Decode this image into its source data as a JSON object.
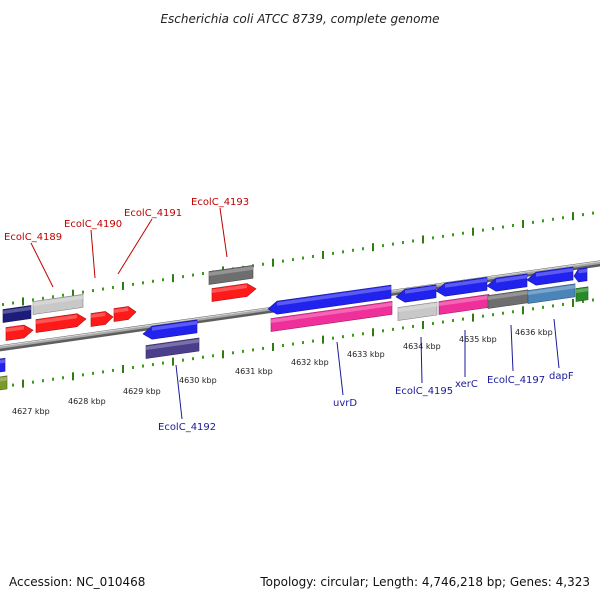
{
  "title": "Escherichia coli ATCC 8739, complete genome",
  "footer": {
    "accession": "Accession: NC_010468",
    "summary": "Topology: circular; Length: 4,746,218 bp; Genes: 4,323"
  },
  "colors": {
    "backbone": "#8a8a8a",
    "tick_major": "#2e7d10",
    "tick_minor": "#3f9a1c",
    "label_top": "#c00000",
    "label_bottom": "#1a1a9a"
  },
  "scale": {
    "ticks": [
      {
        "label": "4627 kbp"
      },
      {
        "label": "4628 kbp"
      },
      {
        "label": "4629 kbp"
      },
      {
        "label": "4630 kbp"
      },
      {
        "label": "4631 kbp"
      },
      {
        "label": "4632 kbp"
      },
      {
        "label": "4633 kbp"
      },
      {
        "label": "4634 kbp"
      },
      {
        "label": "4635 kbp"
      },
      {
        "label": "4636 kbp"
      }
    ]
  },
  "gene_labels": {
    "top": [
      {
        "text": "EcolC_4189"
      },
      {
        "text": "EcolC_4190"
      },
      {
        "text": "EcolC_4191"
      },
      {
        "text": "EcolC_4193"
      }
    ],
    "bottom": [
      {
        "text": "EcolC_4192"
      },
      {
        "text": "uvrD"
      },
      {
        "text": "EcolC_4195"
      },
      {
        "text": "xerC"
      },
      {
        "text": "EcolC_4197"
      },
      {
        "text": "dapF"
      }
    ]
  },
  "features": [
    {
      "name": "gene-dark-navy-left",
      "color": "#1c1c7a"
    },
    {
      "name": "gene-silver-upper",
      "color": "#c8c8c8"
    },
    {
      "name": "gene-red-1",
      "color": "#ff1a1a"
    },
    {
      "name": "gene-red-2",
      "color": "#ff1a1a"
    },
    {
      "name": "gene-red-3",
      "color": "#ff1a1a"
    },
    {
      "name": "gene-red-4",
      "color": "#ff1a1a"
    },
    {
      "name": "gene-gray-4193",
      "color": "#6e6e6e"
    },
    {
      "name": "gene-red-4193",
      "color": "#ff1a1a"
    },
    {
      "name": "gene-blue-4192",
      "color": "#2222ee"
    },
    {
      "name": "gene-purple-4192",
      "color": "#4b3f8c"
    },
    {
      "name": "gene-blue-uvrD",
      "color": "#2222ee"
    },
    {
      "name": "gene-pink-uvrD",
      "color": "#f0309a"
    },
    {
      "name": "gene-blue-4195",
      "color": "#2222ee"
    },
    {
      "name": "gene-silver-4195",
      "color": "#c8c8c8"
    },
    {
      "name": "gene-blue-xerC",
      "color": "#2222ee"
    },
    {
      "name": "gene-pink-xerC",
      "color": "#f0309a"
    },
    {
      "name": "gene-blue-4197",
      "color": "#2222ee"
    },
    {
      "name": "gene-gray-4197",
      "color": "#6e6e6e"
    },
    {
      "name": "gene-blue-dapF",
      "color": "#2222ee"
    },
    {
      "name": "gene-steelblue-dapF",
      "color": "#4a84b8"
    },
    {
      "name": "gene-blue-far-right",
      "color": "#2222ee"
    },
    {
      "name": "gene-green-far-right",
      "color": "#2a8a2a"
    },
    {
      "name": "gene-blue-far-left",
      "color": "#2222ee"
    },
    {
      "name": "gene-olive-far-left",
      "color": "#7a9a2a"
    }
  ]
}
